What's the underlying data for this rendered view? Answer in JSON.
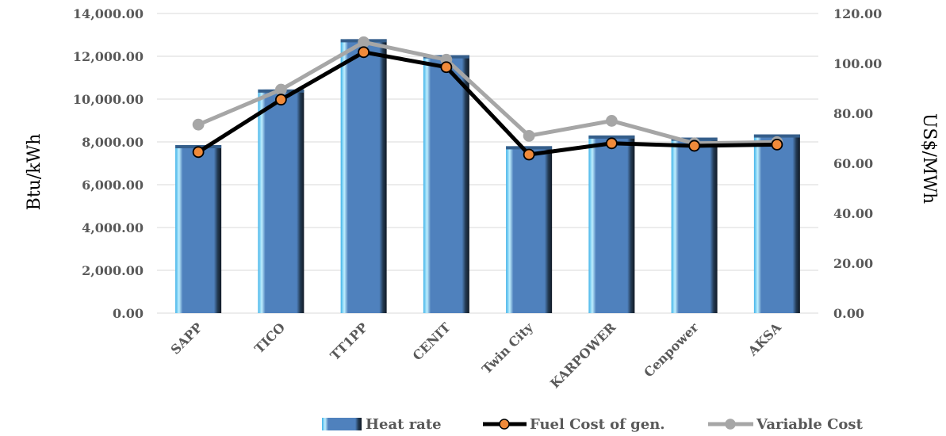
{
  "chart_data": {
    "type": "bar",
    "categories": [
      "SAPP",
      "TICO",
      "TT1PP",
      "CENIT",
      "Twin City",
      "KARPOWER",
      "Cenpower",
      "AKSA"
    ],
    "left_axis": {
      "label": "Btu/kWh",
      "ylim": [
        0,
        14000
      ],
      "ticks": [
        "0.00",
        "2,000.00",
        "4,000.00",
        "6,000.00",
        "8,000.00",
        "10,000.00",
        "12,000.00",
        "14,000.00"
      ]
    },
    "right_axis": {
      "label": "US$/MWh",
      "ylim": [
        0,
        120
      ],
      "ticks": [
        "0.00",
        "20.00",
        "40.00",
        "60.00",
        "80.00",
        "100.00",
        "120.00"
      ]
    },
    "grid": true,
    "legend_position": "bottom",
    "series": [
      {
        "name": "Heat rate",
        "kind": "bar",
        "axis": "left",
        "color": "#4f81bd",
        "values": [
          7850,
          10450,
          12800,
          12050,
          7800,
          8300,
          8200,
          8350
        ]
      },
      {
        "name": "Fuel Cost of gen.",
        "kind": "line",
        "axis": "right",
        "color": "#000000",
        "marker_color": "#f08a3a",
        "values": [
          64.5,
          85.5,
          104.5,
          98.5,
          63.5,
          68.0,
          67.0,
          67.5
        ]
      },
      {
        "name": "Variable Cost",
        "kind": "line",
        "axis": "right",
        "color": "#a6a6a6",
        "marker_color": "#a6a6a6",
        "values": [
          75.5,
          89.5,
          108.5,
          101.5,
          71.0,
          77.0,
          68.0,
          68.5
        ]
      }
    ]
  }
}
